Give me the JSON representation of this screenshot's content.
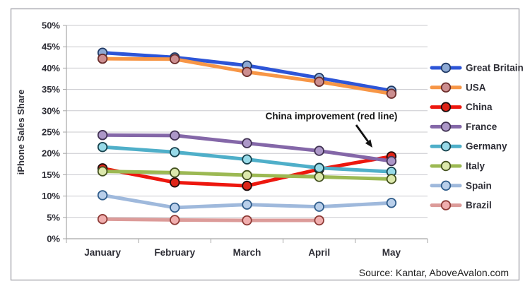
{
  "chart_data": {
    "type": "line",
    "title": "",
    "ylabel": "iPhone Sales Share",
    "xlabel": "",
    "categories": [
      "January",
      "February",
      "March",
      "April",
      "May"
    ],
    "y_axis": {
      "min": 0,
      "max": 50,
      "step": 5,
      "tick_suffix": "%"
    },
    "grid": true,
    "legend_position": "right",
    "series": [
      {
        "name": "Great Britain",
        "line_color": "#2D55D7",
        "marker_fill": "#8DA9D4",
        "marker_ring": "#1F3864",
        "values": [
          43.6,
          42.5,
          40.6,
          37.7,
          34.7
        ]
      },
      {
        "name": "USA",
        "line_color": "#F79646",
        "marker_fill": "#CC8E90",
        "marker_ring": "#6A2C2A",
        "values": [
          42.2,
          42.1,
          39.1,
          36.8,
          34.0
        ]
      },
      {
        "name": "China",
        "line_color": "#ED170E",
        "marker_fill": "#DE2418",
        "marker_ring": "#1C0B0B",
        "values": [
          16.5,
          13.2,
          12.4,
          16.3,
          19.3
        ]
      },
      {
        "name": "France",
        "line_color": "#8467A8",
        "marker_fill": "#AC97C8",
        "marker_ring": "#403152",
        "values": [
          24.3,
          24.2,
          22.4,
          20.6,
          18.2
        ]
      },
      {
        "name": "Germany",
        "line_color": "#4FAFC9",
        "marker_fill": "#97DAE8",
        "marker_ring": "#16414C",
        "values": [
          21.5,
          20.3,
          18.6,
          16.6,
          15.7
        ]
      },
      {
        "name": "Italy",
        "line_color": "#9CB953",
        "marker_fill": "#DCE8AC",
        "marker_ring": "#44511F",
        "values": [
          15.8,
          15.5,
          14.9,
          14.5,
          14.0
        ]
      },
      {
        "name": "Spain",
        "line_color": "#9FB9DC",
        "marker_fill": "#B9CFEA",
        "marker_ring": "#2F5C8A",
        "values": [
          10.2,
          7.3,
          8.0,
          7.5,
          8.4
        ]
      },
      {
        "name": "Brazil",
        "line_color": "#DC9B99",
        "marker_fill": "#F0AEAE",
        "marker_ring": "#8E3B36",
        "values": [
          4.6,
          4.4,
          4.3,
          4.3,
          null
        ]
      }
    ],
    "annotation": {
      "text": "China improvement (red line)"
    },
    "source": "Source: Kantar, AboveAvalon.com"
  },
  "style_colors": {
    "frame_border": "#A9A9B0",
    "gridline": "#C9C9CE",
    "axis": "#A6A6A6",
    "text": "#2E2E36",
    "annotation_arrow": "#111111"
  }
}
